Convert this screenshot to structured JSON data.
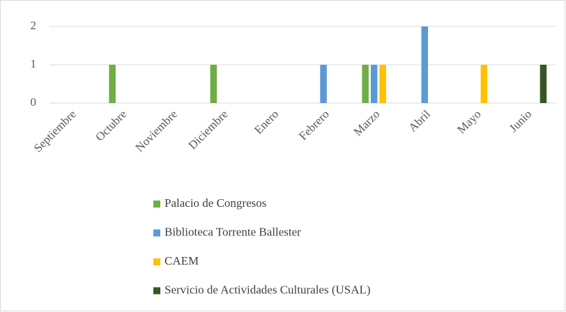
{
  "chart_data": {
    "type": "bar",
    "categories": [
      "Septiembre",
      "Octubre",
      "Noviembre",
      "Diciembre",
      "Enero",
      "Febrero",
      "Marzo",
      "Abril",
      "Mayo",
      "Junio"
    ],
    "series": [
      {
        "name": "Palacio de Congresos",
        "color": "#70ad47",
        "values": [
          0,
          1,
          0,
          1,
          0,
          0,
          1,
          0,
          0,
          0
        ]
      },
      {
        "name": "Biblioteca Torrente Ballester",
        "color": "#5b9bd5",
        "values": [
          0,
          0,
          0,
          0,
          0,
          1,
          1,
          2,
          0,
          0
        ]
      },
      {
        "name": "CAEM",
        "color": "#ffc000",
        "values": [
          0,
          0,
          0,
          0,
          0,
          0,
          1,
          0,
          1,
          0
        ]
      },
      {
        "name": "Servicio de Actividades Culturales (USAL)",
        "color": "#375623",
        "values": [
          0,
          0,
          0,
          0,
          0,
          0,
          0,
          0,
          0,
          1
        ]
      }
    ],
    "ylim": [
      0,
      2
    ],
    "yticks": [
      0,
      1,
      2
    ],
    "grid": true,
    "legend": "bottom"
  }
}
